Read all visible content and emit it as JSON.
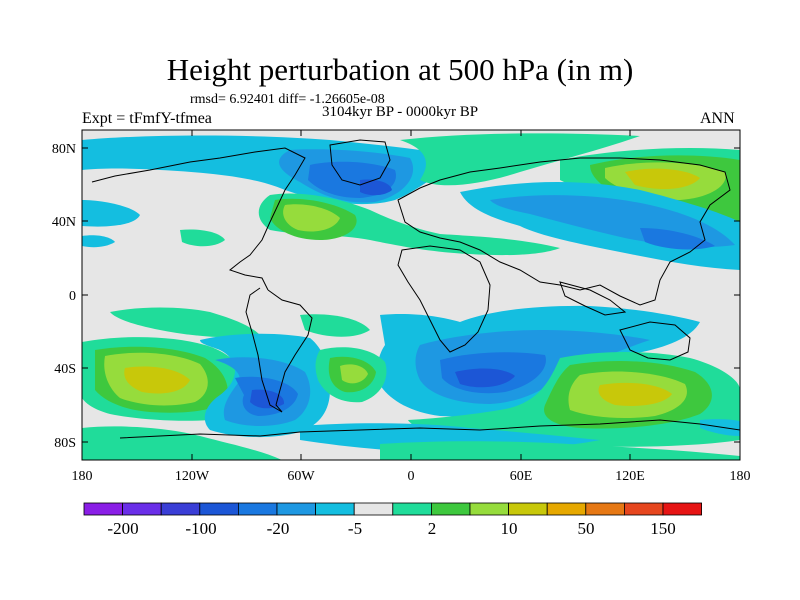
{
  "title": "Height perturbation at 500 hPa (in m)",
  "stats_text": "rmsd= 6.92401 diff= -1.26605e-08",
  "experiment": "Expt = tFmfY-tfmea",
  "period": "3104kyr BP - 0000kyr BP",
  "season": "ANN",
  "lat_ticks": [
    "80N",
    "40N",
    "0",
    "40S",
    "80S"
  ],
  "lon_ticks": [
    "180",
    "120W",
    "60W",
    "0",
    "60E",
    "120E",
    "180"
  ],
  "colorbar": {
    "colors": [
      "#8a1ee6",
      "#6a2ee8",
      "#3a3ed6",
      "#1c56d6",
      "#1a78e0",
      "#1e98e2",
      "#14bee0",
      "#e6e6e6",
      "#20dc9a",
      "#3ec83e",
      "#96dc3c",
      "#c8c80a",
      "#e6a800",
      "#e67814",
      "#e6461e",
      "#e61414"
    ],
    "labels": [
      "-200",
      "-100",
      "-20",
      "-5",
      "2",
      "10",
      "50",
      "150"
    ]
  },
  "field_colors": {
    "neg1": "#14bee0",
    "neg2": "#1e98e2",
    "neg3": "#1a78e0",
    "neg4": "#1c56d6",
    "neutral": "#e6e6e6",
    "pos1": "#20dc9a",
    "pos2": "#3ec83e",
    "pos3": "#96dc3c",
    "pos4": "#c8c80a"
  }
}
